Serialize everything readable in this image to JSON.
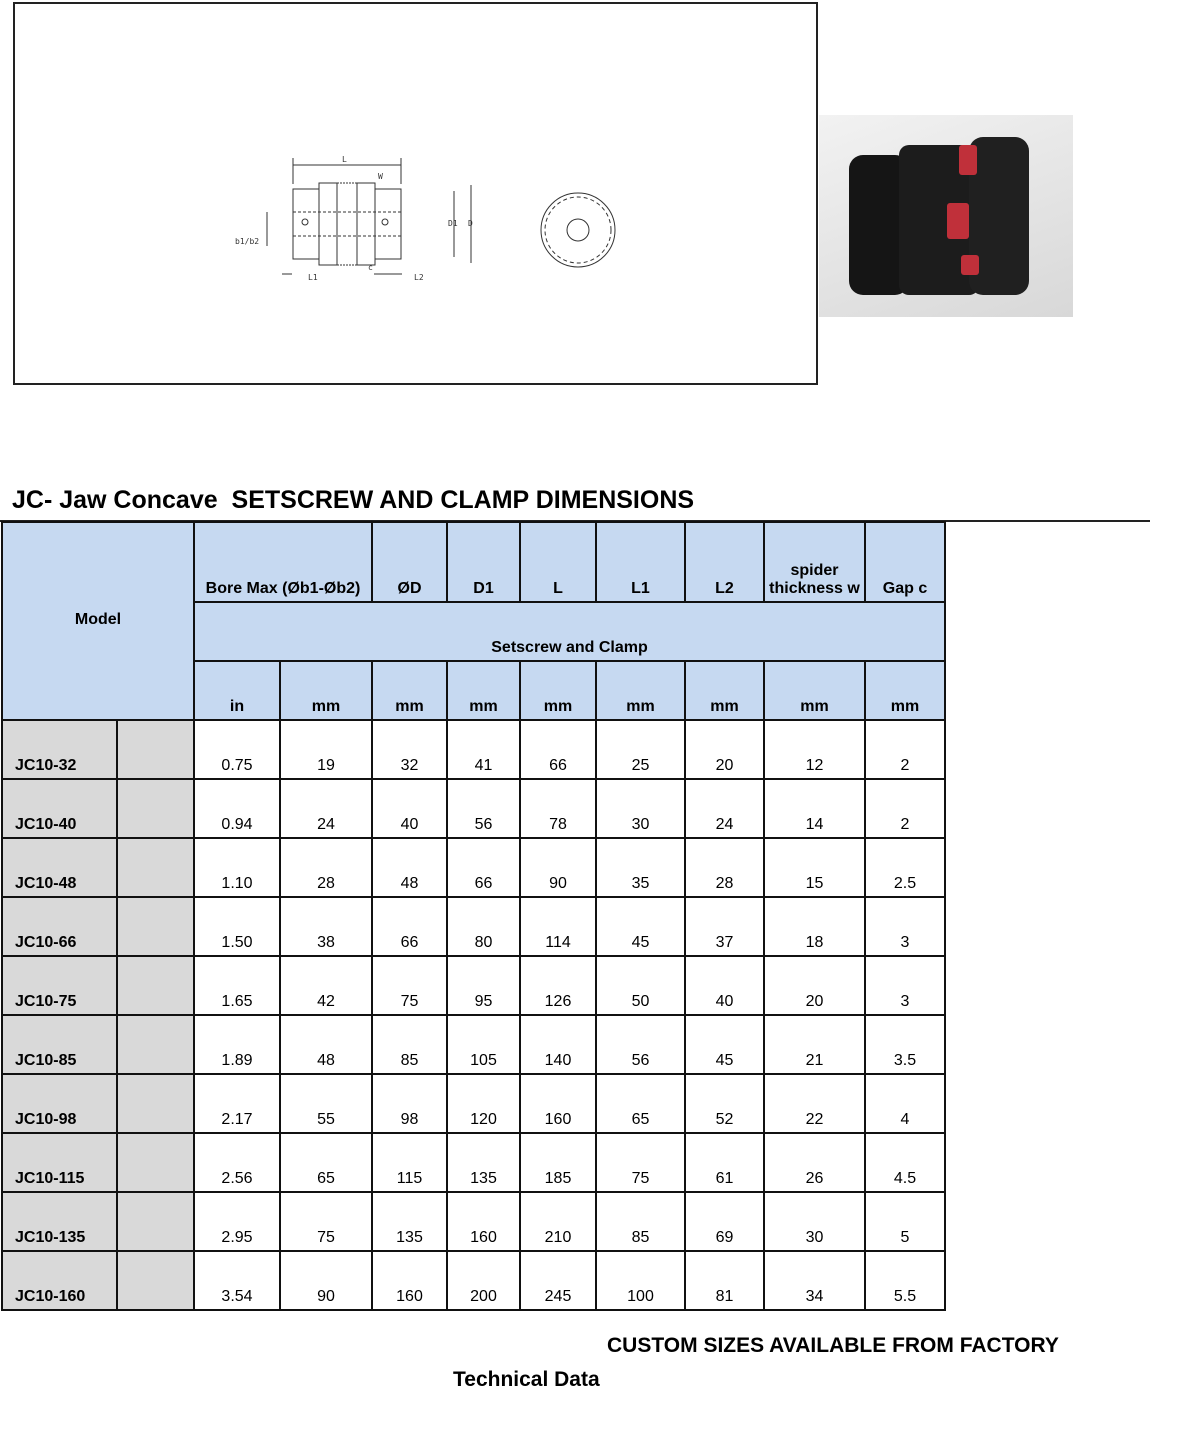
{
  "diagram": {
    "labels": {
      "L": "L",
      "W": "W",
      "D1": "D1",
      "D": "D",
      "b": "b1/b2",
      "L1": "L1",
      "L2": "L2",
      "c": "c"
    }
  },
  "title": "JC- Jaw Concave  SETSCREW AND CLAMP DIMENSIONS",
  "header": {
    "model": "Model",
    "bore": "Bore Max (Øb1-Øb2)",
    "cols": [
      "ØD",
      "D1",
      "L",
      "L1",
      "L2",
      "spider thickness w",
      "Gap c"
    ],
    "group": "Setscrew and Clamp",
    "units": [
      "in",
      "mm",
      "mm",
      "mm",
      "mm",
      "mm",
      "mm",
      "mm",
      "mm"
    ]
  },
  "rows": [
    [
      "JC10-32",
      "0.75",
      "19",
      "32",
      "41",
      "66",
      "25",
      "20",
      "12",
      "2"
    ],
    [
      "JC10-40",
      "0.94",
      "24",
      "40",
      "56",
      "78",
      "30",
      "24",
      "14",
      "2"
    ],
    [
      "JC10-48",
      "1.10",
      "28",
      "48",
      "66",
      "90",
      "35",
      "28",
      "15",
      "2.5"
    ],
    [
      "JC10-66",
      "1.50",
      "38",
      "66",
      "80",
      "114",
      "45",
      "37",
      "18",
      "3"
    ],
    [
      "JC10-75",
      "1.65",
      "42",
      "75",
      "95",
      "126",
      "50",
      "40",
      "20",
      "3"
    ],
    [
      "JC10-85",
      "1.89",
      "48",
      "85",
      "105",
      "140",
      "56",
      "45",
      "21",
      "3.5"
    ],
    [
      "JC10-98",
      "2.17",
      "55",
      "98",
      "120",
      "160",
      "65",
      "52",
      "22",
      "4"
    ],
    [
      "JC10-115",
      "2.56",
      "65",
      "115",
      "135",
      "185",
      "75",
      "61",
      "26",
      "4.5"
    ],
    [
      "JC10-135",
      "2.95",
      "75",
      "135",
      "160",
      "210",
      "85",
      "69",
      "30",
      "5"
    ],
    [
      "JC10-160",
      "3.54",
      "90",
      "160",
      "200",
      "245",
      "100",
      "81",
      "34",
      "5.5"
    ]
  ],
  "footer": {
    "custom": "CUSTOM SIZES AVAILABLE FROM FACTORY",
    "technical": "Technical Data"
  }
}
